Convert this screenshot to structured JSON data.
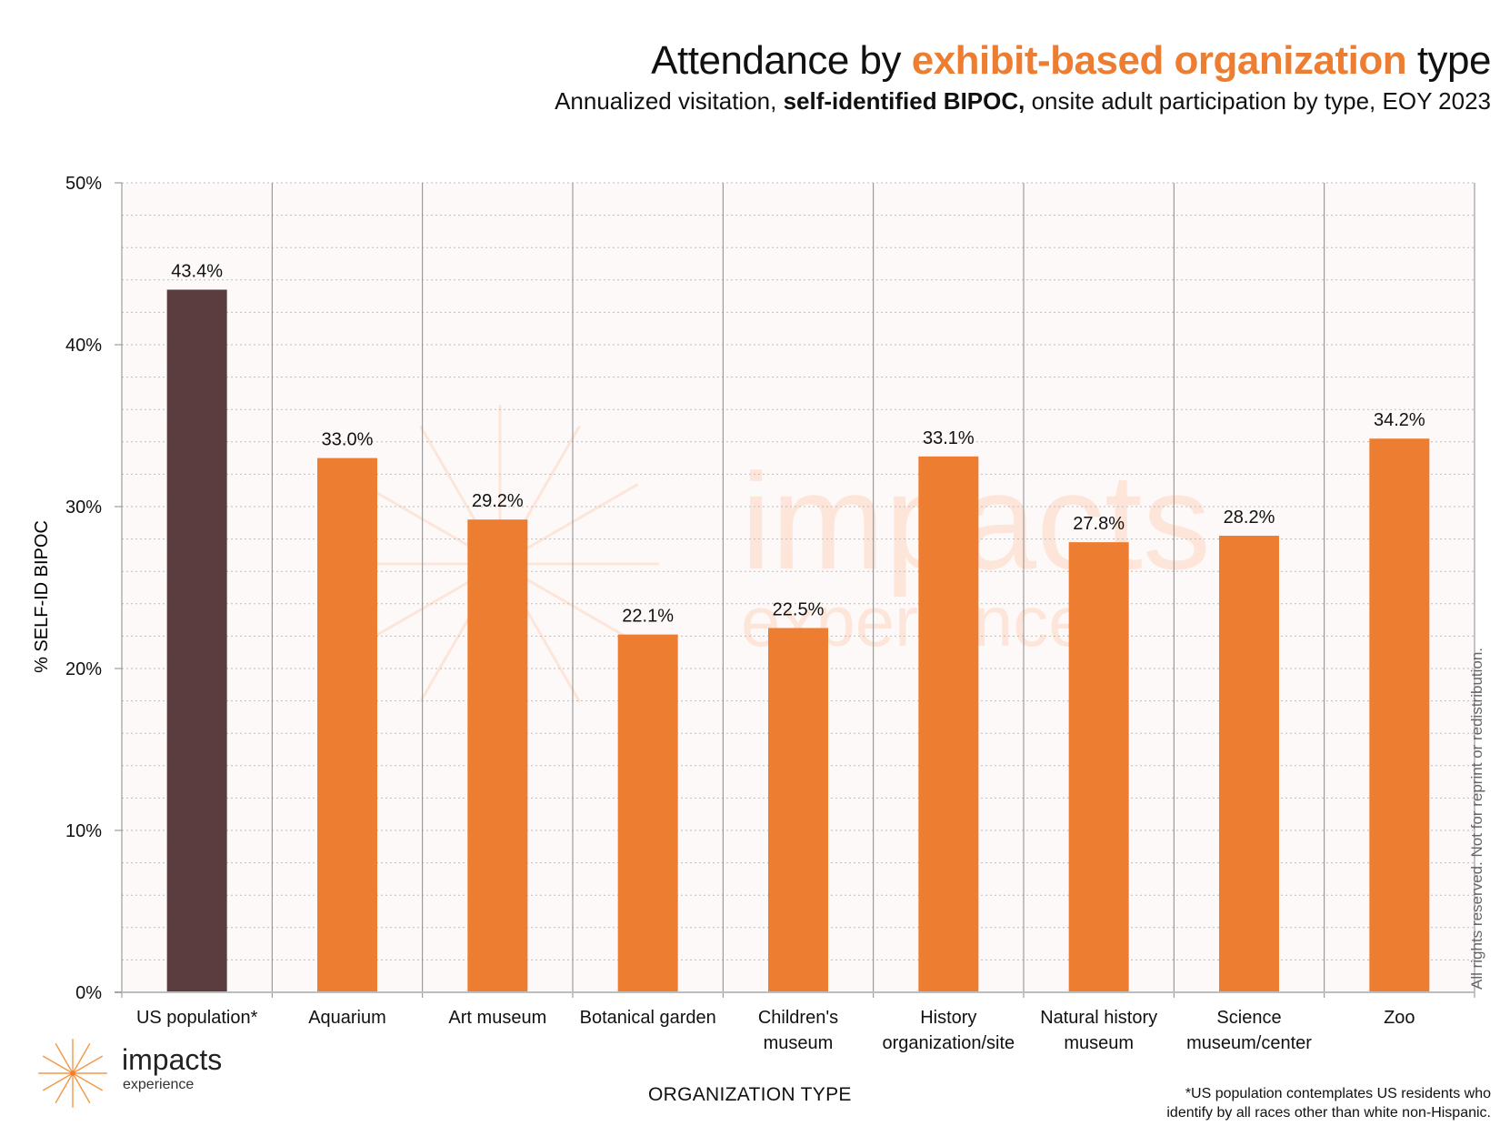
{
  "header": {
    "title_pre": "Attendance by ",
    "title_accent": "exhibit-based organization",
    "title_post": " type",
    "subtitle_pre": "Annualized visitation, ",
    "subtitle_bold": "self-identified BIPOC,",
    "subtitle_post": " onsite adult participation by type, EOY 2023"
  },
  "chart_data": {
    "type": "bar",
    "title": "Attendance by exhibit-based organization type",
    "subtitle": "Annualized visitation, self-identified BIPOC, onsite adult participation by type, EOY 2023",
    "xlabel": "ORGANIZATION TYPE",
    "ylabel": "% SELF-ID BIPOC",
    "ylim": [
      0,
      50
    ],
    "yticks": [
      0,
      10,
      20,
      30,
      40,
      50
    ],
    "ytick_labels": [
      "0%",
      "10%",
      "20%",
      "30%",
      "40%",
      "50%"
    ],
    "minor_grid_step": 2,
    "grid": true,
    "categories": [
      [
        "US population*"
      ],
      [
        "Aquarium"
      ],
      [
        "Art museum"
      ],
      [
        "Botanical garden"
      ],
      [
        "Children's",
        "museum"
      ],
      [
        "History",
        "organization/site"
      ],
      [
        "Natural history",
        "museum"
      ],
      [
        "Science",
        "museum/center"
      ],
      [
        "Zoo"
      ]
    ],
    "values": [
      43.4,
      33.0,
      29.2,
      22.1,
      22.5,
      33.1,
      27.8,
      28.2,
      34.2
    ],
    "data_labels": [
      "43.4%",
      "33.0%",
      "29.2%",
      "22.1%",
      "22.5%",
      "33.1%",
      "27.8%",
      "28.2%",
      "34.2%"
    ],
    "colors": [
      "#5b3d40",
      "#ed7d31",
      "#ed7d31",
      "#ed7d31",
      "#ed7d31",
      "#ed7d31",
      "#ed7d31",
      "#ed7d31",
      "#ed7d31"
    ]
  },
  "colors": {
    "accent": "#ed7d31",
    "highlight_bar": "#5b3d40",
    "plot_bg": "#fdf9f8",
    "watermark": "#fde6d9"
  },
  "watermark": {
    "word": "impacts",
    "sub": "experience"
  },
  "logo": {
    "word": "impacts",
    "sub": "experience"
  },
  "footnote": {
    "line1": "*US population contemplates US residents who",
    "line2": "identify by all races other than white non-Hispanic."
  },
  "rights": "All rights reserved. Not for reprint or redistribution."
}
